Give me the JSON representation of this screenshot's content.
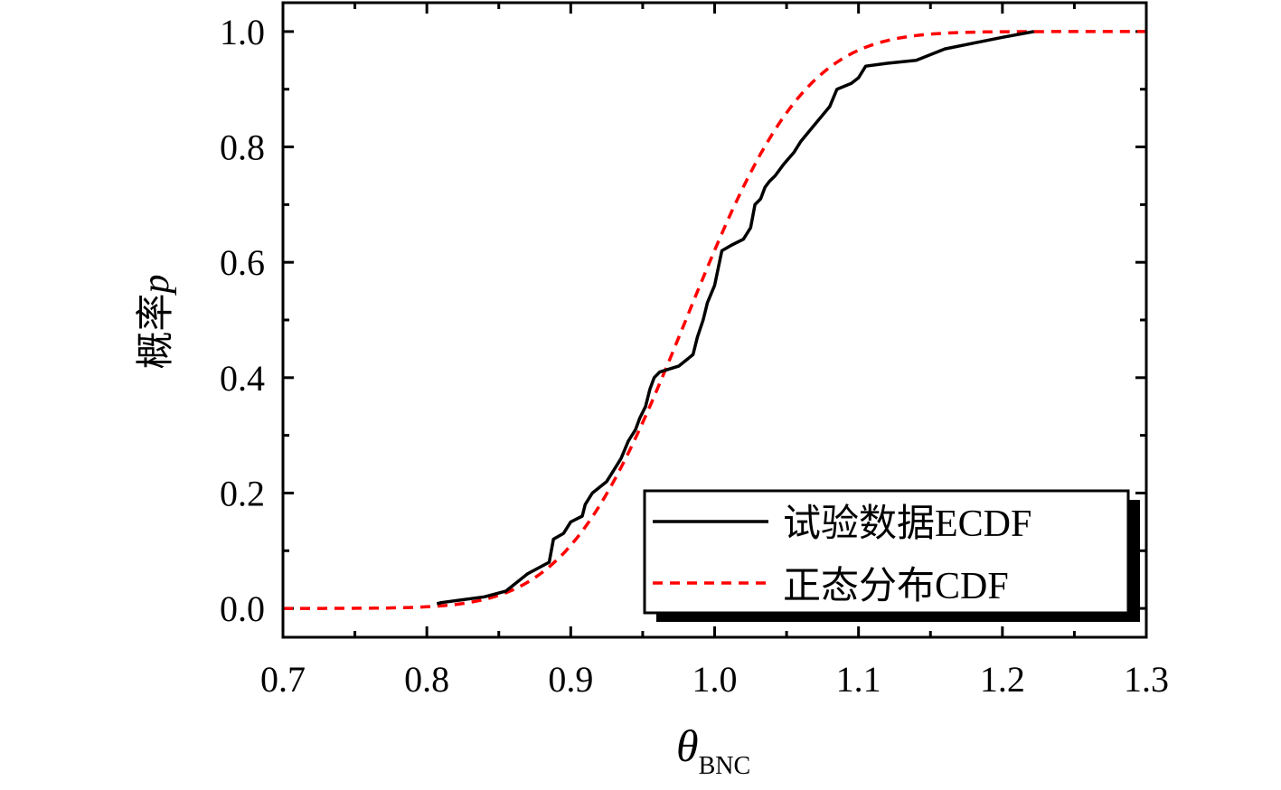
{
  "chart_data": {
    "type": "line",
    "xlabel": {
      "main": "θ",
      "sub": "BNC"
    },
    "ylabel": {
      "main": "概率",
      "italic": "p"
    },
    "xlim": [
      0.7,
      1.3
    ],
    "ylim": [
      -0.05,
      1.05
    ],
    "x_ticks": [
      "0.7",
      "0.8",
      "0.9",
      "1.0",
      "1.1",
      "1.2",
      "1.3"
    ],
    "y_ticks": [
      "0.0",
      "0.2",
      "0.4",
      "0.6",
      "0.8",
      "1.0"
    ],
    "grid": false,
    "legend_position": "bottom-right",
    "series": [
      {
        "name": "试验数据ECDF",
        "color": "#000000",
        "style": "solid",
        "x": [
          0.807,
          0.81,
          0.84,
          0.855,
          0.87,
          0.885,
          0.888,
          0.895,
          0.9,
          0.908,
          0.91,
          0.915,
          0.925,
          0.93,
          0.935,
          0.94,
          0.945,
          0.948,
          0.952,
          0.955,
          0.958,
          0.962,
          0.975,
          0.985,
          0.988,
          0.992,
          0.995,
          1.0,
          1.005,
          1.012,
          1.02,
          1.025,
          1.028,
          1.032,
          1.035,
          1.038,
          1.042,
          1.048,
          1.055,
          1.06,
          1.07,
          1.08,
          1.085,
          1.095,
          1.1,
          1.105,
          1.12,
          1.14,
          1.16,
          1.18,
          1.2,
          1.222
        ],
        "y": [
          0.008,
          0.01,
          0.02,
          0.03,
          0.06,
          0.08,
          0.12,
          0.13,
          0.15,
          0.16,
          0.18,
          0.2,
          0.22,
          0.24,
          0.26,
          0.29,
          0.31,
          0.33,
          0.35,
          0.38,
          0.4,
          0.41,
          0.42,
          0.44,
          0.47,
          0.5,
          0.53,
          0.56,
          0.62,
          0.63,
          0.64,
          0.66,
          0.7,
          0.71,
          0.73,
          0.74,
          0.75,
          0.77,
          0.79,
          0.81,
          0.84,
          0.87,
          0.9,
          0.91,
          0.92,
          0.94,
          0.945,
          0.95,
          0.97,
          0.98,
          0.99,
          1.0
        ]
      },
      {
        "name": "正态分布CDF",
        "color": "#ff0000",
        "style": "dashed",
        "distribution": {
          "kind": "normal",
          "mean": 0.98,
          "sd": 0.065
        },
        "x_range": [
          0.7,
          1.3
        ]
      }
    ]
  }
}
